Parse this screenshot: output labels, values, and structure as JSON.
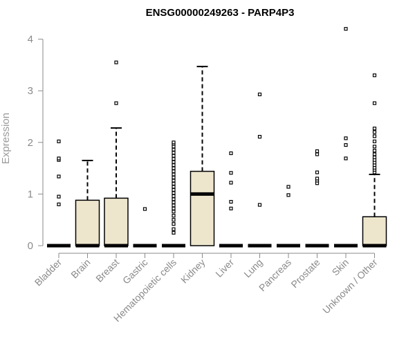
{
  "chart_data": {
    "type": "box",
    "title": "ENSG00000249263 - PARP4P3",
    "xlabel": "",
    "ylabel": "Expression",
    "ylim": [
      0,
      4.25
    ],
    "yticks": [
      0,
      1,
      2,
      3,
      4
    ],
    "grid": false,
    "legend": "none",
    "box_fill": "#ede6cd",
    "categories": [
      "Bladder",
      "Brain",
      "Breast",
      "Gastric",
      "Hematopoietic cells",
      "Kidney",
      "Liver",
      "Lung",
      "Pancreas",
      "Prostate",
      "Skin",
      "Unknown / Other"
    ],
    "boxes": [
      {
        "q1": 0,
        "median": 0,
        "q3": 0,
        "whisker_low": 0,
        "whisker_high": 0,
        "outliers": [
          0.8,
          0.95,
          1.34,
          1.66,
          1.69,
          2.02
        ]
      },
      {
        "q1": 0,
        "median": 0,
        "q3": 0.88,
        "whisker_low": 0,
        "whisker_high": 1.65,
        "outliers": []
      },
      {
        "q1": 0,
        "median": 0,
        "q3": 0.92,
        "whisker_low": 0,
        "whisker_high": 2.28,
        "outliers": [
          2.76,
          3.55
        ]
      },
      {
        "q1": 0,
        "median": 0,
        "q3": 0,
        "whisker_low": 0,
        "whisker_high": 0,
        "outliers": [
          0.71
        ]
      },
      {
        "q1": 0,
        "median": 0,
        "q3": 0,
        "whisker_low": 0,
        "whisker_high": 0,
        "outliers": [
          0.25,
          0.32,
          0.42,
          0.5,
          0.58,
          0.66,
          0.72,
          0.78,
          0.84,
          0.9,
          0.96,
          1.02,
          1.08,
          1.14,
          1.2,
          1.26,
          1.32,
          1.38,
          1.44,
          1.5,
          1.56,
          1.62,
          1.68,
          1.74,
          1.8,
          1.86,
          1.92,
          1.97,
          2.0
        ]
      },
      {
        "q1": 0,
        "median": 1.0,
        "q3": 1.44,
        "whisker_low": 0,
        "whisker_high": 3.47,
        "outliers": []
      },
      {
        "q1": 0,
        "median": 0,
        "q3": 0,
        "whisker_low": 0,
        "whisker_high": 0,
        "outliers": [
          0.72,
          0.85,
          1.22,
          1.41,
          1.79
        ]
      },
      {
        "q1": 0,
        "median": 0,
        "q3": 0,
        "whisker_low": 0,
        "whisker_high": 0,
        "outliers": [
          0.79,
          2.11,
          2.93
        ]
      },
      {
        "q1": 0,
        "median": 0,
        "q3": 0,
        "whisker_low": 0,
        "whisker_high": 0,
        "outliers": [
          0.98,
          1.14
        ]
      },
      {
        "q1": 0,
        "median": 0,
        "q3": 0,
        "whisker_low": 0,
        "whisker_high": 0,
        "outliers": [
          1.21,
          1.26,
          1.3,
          1.42,
          1.77,
          1.83
        ]
      },
      {
        "q1": 0,
        "median": 0,
        "q3": 0,
        "whisker_low": 0,
        "whisker_high": 0,
        "outliers": [
          1.69,
          1.95,
          2.08,
          4.2
        ]
      },
      {
        "q1": 0,
        "median": 0,
        "q3": 0.56,
        "whisker_low": 0,
        "whisker_high": 1.38,
        "outliers": [
          1.42,
          1.47,
          1.51,
          1.56,
          1.61,
          1.66,
          1.71,
          1.77,
          1.84,
          1.92,
          2.02,
          2.12,
          2.2,
          2.27,
          2.76,
          3.3
        ]
      }
    ]
  }
}
